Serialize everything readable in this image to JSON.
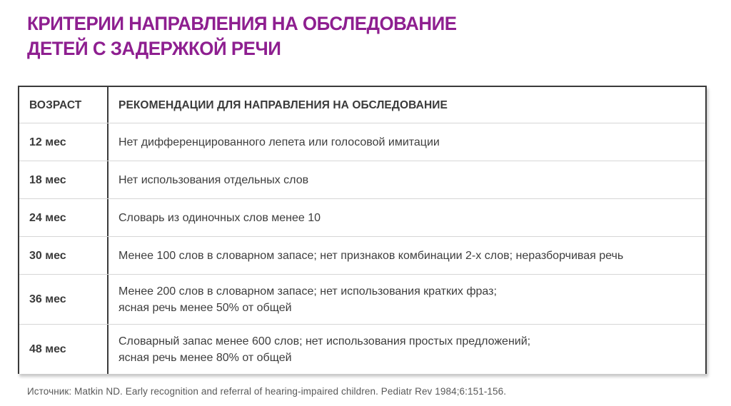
{
  "title": {
    "line1": "КРИТЕРИИ НАПРАВЛЕНИЯ НА ОБСЛЕДОВАНИЕ",
    "line2": "ДЕТЕЙ С ЗАДЕРЖКОЙ РЕЧИ"
  },
  "colors": {
    "accent_purple": "#8e1f90",
    "border_dark": "#3a3a3a",
    "row_divider": "#d6d6d6",
    "body_text": "#3d3d3d",
    "footer_text": "#595959",
    "background": "#ffffff"
  },
  "table": {
    "columns": {
      "age": "ВОЗРАСТ",
      "recommendation": "РЕКОМЕНДАЦИИ ДЛЯ НАПРАВЛЕНИЯ НА ОБСЛЕДОВАНИЕ"
    },
    "rows": [
      {
        "age": "12 мес",
        "recommendation": "Нет дифференцированного лепета или голосовой имитации"
      },
      {
        "age": "18 мес",
        "recommendation": "Нет использования отдельных слов"
      },
      {
        "age": "24 мес",
        "recommendation": "Словарь из одиночных слов менее 10"
      },
      {
        "age": "30 мес",
        "recommendation": "Менее 100 слов в словарном запасе; нет признаков комбинации 2-х слов; неразборчивая речь"
      },
      {
        "age": "36 мес",
        "recommendation": "Менее 200 слов в словарном запасе; нет использования кратких фраз;\nясная речь менее 50% от общей"
      },
      {
        "age": "48 мес",
        "recommendation": "Словарный запас менее 600 слов; нет использования простых предложений;\nясная речь менее 80% от общей"
      }
    ]
  },
  "footer": {
    "source": "Источник: Matkin ND. Early recognition and referral of hearing-impaired children. Pediatr Rev 1984;6:151-156."
  }
}
